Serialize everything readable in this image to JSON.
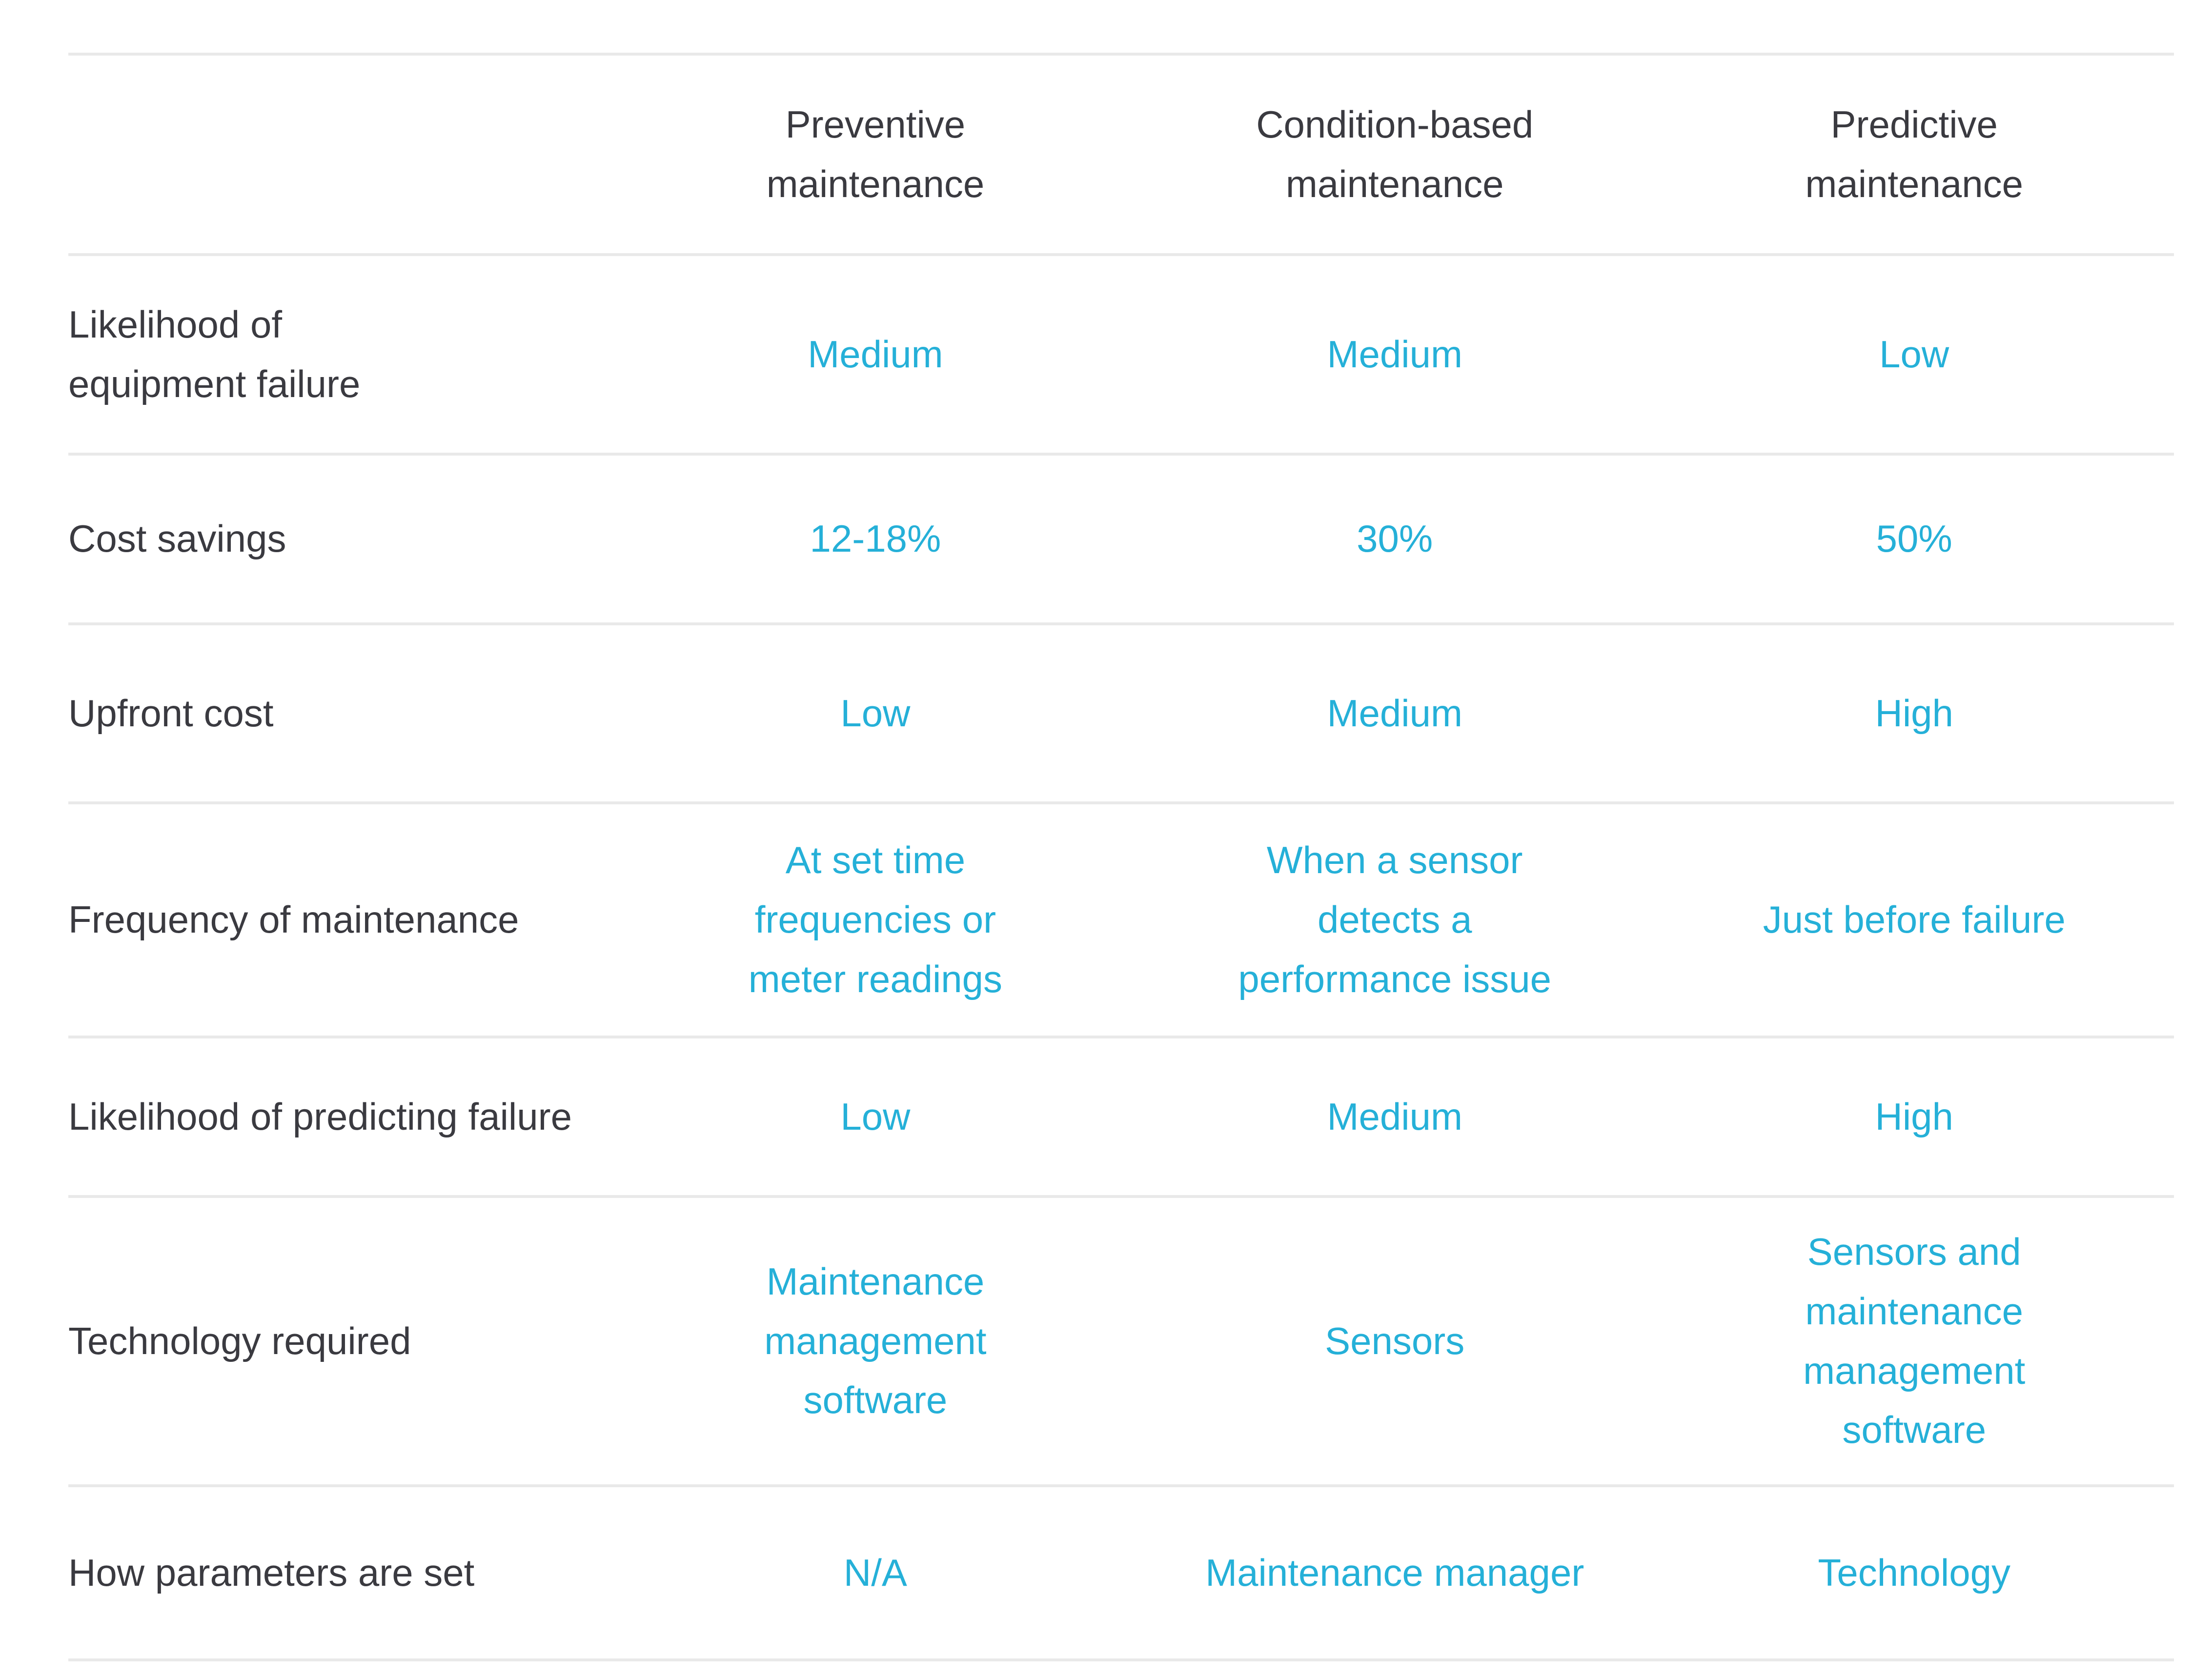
{
  "colors": {
    "accent_cyan": "#25b0d8",
    "text_dark": "#3a3a40",
    "divider_gray": "#e9e9e9",
    "background": "#ffffff"
  },
  "table": {
    "corner_label": "",
    "columns": [
      "Preventive\nmaintenance",
      "Condition-based\nmaintenance",
      "Predictive\nmaintenance"
    ],
    "rows": [
      {
        "label": "Likelihood of\nequipment failure",
        "values": [
          "Medium",
          "Medium",
          "Low"
        ]
      },
      {
        "label": "Cost savings",
        "values": [
          "12-18%",
          "30%",
          "50%"
        ]
      },
      {
        "label": "Upfront cost",
        "values": [
          "Low",
          "Medium",
          "High"
        ]
      },
      {
        "label": "Frequency of maintenance",
        "values": [
          "At set time\nfrequencies or\nmeter readings",
          "When a sensor\ndetects a\nperformance issue",
          "Just before failure"
        ]
      },
      {
        "label": "Likelihood of predicting failure",
        "values": [
          "Low",
          "Medium",
          "High"
        ]
      },
      {
        "label": "Technology required",
        "values": [
          "Maintenance\nmanagement\nsoftware",
          "Sensors",
          "Sensors and\nmaintenance\nmanagement\nsoftware"
        ]
      },
      {
        "label": "How parameters are set",
        "values": [
          "N/A",
          "Maintenance manager",
          "Technology"
        ]
      }
    ]
  },
  "chart_data": {
    "type": "table",
    "columns": [
      "",
      "Preventive maintenance",
      "Condition-based maintenance",
      "Predictive maintenance"
    ],
    "rows": [
      [
        "Likelihood of equipment failure",
        "Medium",
        "Medium",
        "Low"
      ],
      [
        "Cost savings",
        "12-18%",
        "30%",
        "50%"
      ],
      [
        "Upfront cost",
        "Low",
        "Medium",
        "High"
      ],
      [
        "Frequency of maintenance",
        "At set time frequencies or meter readings",
        "When a sensor detects a performance issue",
        "Just before failure"
      ],
      [
        "Likelihood of predicting failure",
        "Low",
        "Medium",
        "High"
      ],
      [
        "Technology required",
        "Maintenance management software",
        "Sensors",
        "Sensors and maintenance management software"
      ],
      [
        "How parameters are set",
        "N/A",
        "Maintenance manager",
        "Technology"
      ]
    ],
    "title": "",
    "legend": "none",
    "grid": "horizontal-dividers-only"
  }
}
